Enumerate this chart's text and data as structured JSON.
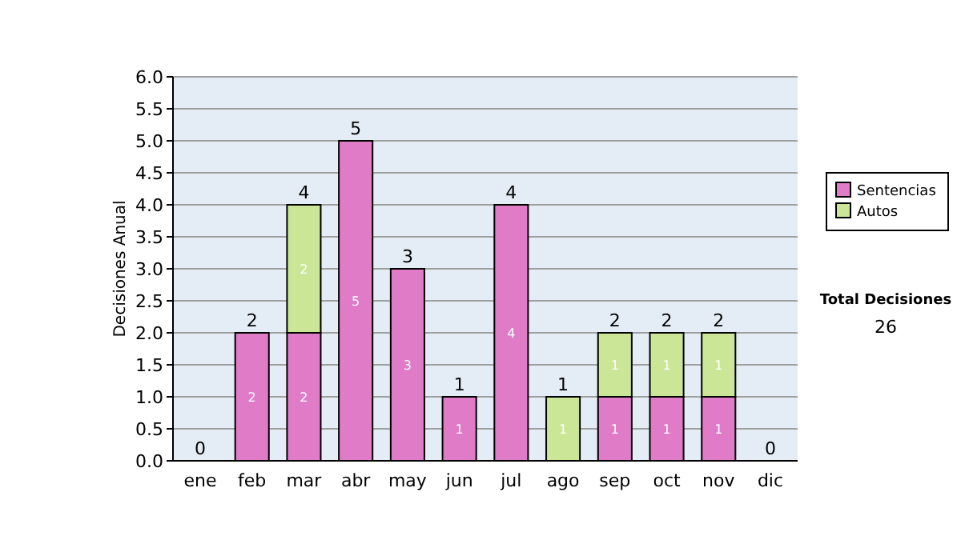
{
  "chart_data": {
    "type": "bar",
    "stacked": true,
    "ylabel": "Decisiones Anual",
    "categories": [
      "ene",
      "feb",
      "mar",
      "abr",
      "may",
      "jun",
      "jul",
      "ago",
      "sep",
      "oct",
      "nov",
      "dic"
    ],
    "series": [
      {
        "name": "Sentencias",
        "color": "#e07bc8",
        "values": [
          0,
          2,
          2,
          5,
          3,
          1,
          4,
          0,
          1,
          1,
          1,
          0
        ],
        "value_labels": [
          null,
          "2",
          "2",
          "5",
          "3",
          "1",
          "4",
          null,
          "1",
          "1",
          "1",
          null
        ]
      },
      {
        "name": "Autos",
        "color": "#cbe697",
        "values": [
          0,
          0,
          2,
          0,
          0,
          0,
          0,
          1,
          1,
          1,
          1,
          0
        ],
        "value_labels": [
          null,
          null,
          "2",
          null,
          null,
          null,
          null,
          "1",
          "1",
          "1",
          "1",
          null
        ]
      }
    ],
    "totals": [
      "0",
      "2",
      "4",
      "5",
      "3",
      "1",
      "4",
      "1",
      "2",
      "2",
      "2",
      "0"
    ],
    "ylim": [
      0,
      6
    ],
    "yticks": [
      {
        "value": 0,
        "label": "0.0"
      },
      {
        "value": 0.5,
        "label": "0.5"
      },
      {
        "value": 1,
        "label": "1.0"
      },
      {
        "value": 1.5,
        "label": "1.5"
      },
      {
        "value": 2,
        "label": "2.0"
      },
      {
        "value": 2.5,
        "label": "2.5"
      },
      {
        "value": 3,
        "label": "3.0"
      },
      {
        "value": 3.5,
        "label": "3.5"
      },
      {
        "value": 4,
        "label": "4.0"
      },
      {
        "value": 4.5,
        "label": "4.5"
      },
      {
        "value": 5,
        "label": "5.0"
      },
      {
        "value": 5.5,
        "label": "5.5"
      },
      {
        "value": 6,
        "label": "6.0"
      }
    ],
    "grid": "y",
    "legend": "right",
    "annotations": [
      "Total Decisiones",
      "26"
    ]
  }
}
